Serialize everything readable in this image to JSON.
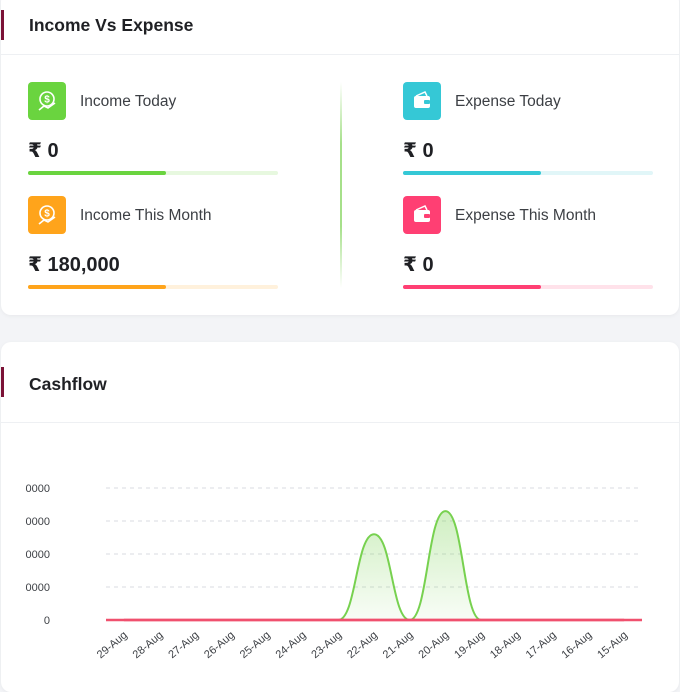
{
  "income_vs_expense": {
    "title": "Income Vs Expense",
    "accent_color": "#7b1236",
    "stats": [
      {
        "key": "income_today",
        "label": "Income Today",
        "value": "₹ 0",
        "icon": "income-icon",
        "color": "#6ad43f",
        "track_color": "#e7f8df",
        "progress": 0.55
      },
      {
        "key": "expense_today",
        "label": "Expense Today",
        "value": "₹ 0",
        "icon": "wallet-icon",
        "color": "#35c8d6",
        "track_color": "#e1f6f8",
        "progress": 0.55
      },
      {
        "key": "income_month",
        "label": "Income This Month",
        "value": "₹ 180,000",
        "icon": "income-icon",
        "color": "#ffa41b",
        "track_color": "#fff1dc",
        "progress": 0.55
      },
      {
        "key": "expense_month",
        "label": "Expense This Month",
        "value": "₹ 0",
        "icon": "wallet-icon",
        "color": "#ff3f73",
        "track_color": "#ffe2ea",
        "progress": 0.55
      }
    ]
  },
  "cashflow": {
    "title": "Cashflow"
  },
  "chart_data": {
    "type": "area",
    "title": "",
    "xlabel": "",
    "ylabel": "",
    "y_tick_labels": [
      "0",
      "0000",
      "0000",
      "0000",
      "0000"
    ],
    "categories": [
      "29-Aug",
      "28-Aug",
      "27-Aug",
      "26-Aug",
      "25-Aug",
      "24-Aug",
      "23-Aug",
      "22-Aug",
      "21-Aug",
      "20-Aug",
      "19-Aug",
      "18-Aug",
      "17-Aug",
      "16-Aug",
      "15-Aug"
    ],
    "series": [
      {
        "values": [
          0,
          0,
          0,
          0,
          0,
          0,
          0,
          2.6,
          0,
          3.3,
          0,
          0,
          0,
          0,
          0
        ],
        "color": "#77d14f"
      },
      {
        "values": [
          0,
          0,
          0,
          0,
          0,
          0,
          0,
          0,
          0,
          0,
          0,
          0,
          0,
          0,
          0
        ],
        "color": "#f0506e"
      }
    ],
    "ylim": [
      0,
      4
    ],
    "grid": true
  }
}
